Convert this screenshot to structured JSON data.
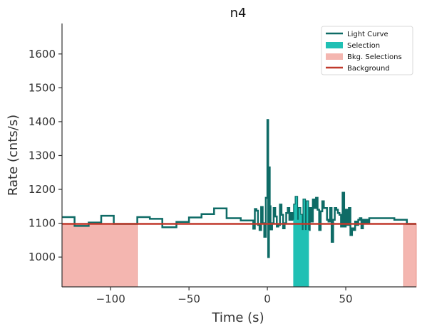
{
  "chart_data": {
    "type": "line",
    "title": "n4",
    "xlabel": "Time (s)",
    "ylabel": "Rate (cnts/s)",
    "xlim": [
      -131,
      95
    ],
    "ylim": [
      912,
      1690
    ],
    "xticks": [
      -100,
      -50,
      0,
      50
    ],
    "xtick_labels": [
      "−100",
      "−50",
      "0",
      "50"
    ],
    "yticks": [
      1000,
      1100,
      1200,
      1300,
      1400,
      1500,
      1600
    ],
    "ytick_labels": [
      "1000",
      "1100",
      "1200",
      "1300",
      "1400",
      "1500",
      "1600"
    ],
    "grid": false,
    "legend_position": "top-right",
    "colors": {
      "light_curve": "#0e6b66",
      "selection": "#20c0b4",
      "bkg_selection": "#f4b6b0",
      "bkg_selection_edge": "#e8958c",
      "background": "#c0392b"
    },
    "legend": [
      {
        "label": "Light Curve",
        "kind": "line",
        "color": "#0e6b66"
      },
      {
        "label": "Selection",
        "kind": "patch",
        "color": "#20c0b4"
      },
      {
        "label": "Bkg. Selections",
        "kind": "patch",
        "color": "#f4b6b0"
      },
      {
        "label": "Background",
        "kind": "line",
        "color": "#c0392b"
      }
    ],
    "light_curve": {
      "x": [
        -131,
        -123,
        -114,
        -106,
        -98,
        -83,
        -75,
        -67,
        -58,
        -50,
        -42,
        -34,
        -33,
        -26,
        -17,
        -9,
        -8,
        -7,
        -6,
        -5,
        -4,
        -3,
        -2,
        -1,
        0,
        0.5,
        1,
        1.5,
        2,
        3,
        4,
        5,
        6,
        7,
        8,
        9,
        10,
        11,
        12,
        13,
        14,
        15,
        16,
        17,
        18,
        19,
        20,
        21,
        22,
        23,
        24,
        25,
        26,
        27,
        28,
        29,
        30,
        31,
        32,
        33,
        34,
        35,
        36,
        37,
        38,
        39,
        40,
        41,
        42,
        43,
        44,
        45,
        46,
        47,
        48,
        49,
        50,
        51,
        52,
        53,
        54,
        55,
        56,
        57,
        58,
        59,
        60,
        61,
        62,
        63,
        64,
        65,
        73,
        81,
        89,
        95
      ],
      "y": [
        1118,
        1092,
        1102,
        1122,
        1098,
        1118,
        1113,
        1088,
        1104,
        1117,
        1127,
        1144,
        1144,
        1115,
        1108,
        1084,
        1142,
        1137,
        1095,
        1080,
        1148,
        1100,
        1060,
        1175,
        1405,
        1000,
        1265,
        1150,
        1082,
        1100,
        1145,
        1120,
        1090,
        1095,
        1155,
        1125,
        1085,
        1100,
        1130,
        1145,
        1110,
        1130,
        1110,
        1155,
        1178,
        1110,
        1145,
        1125,
        1080,
        1170,
        1080,
        1165,
        1080,
        1145,
        1105,
        1170,
        1145,
        1175,
        1140,
        1080,
        1135,
        1165,
        1145,
        1145,
        1110,
        1105,
        1145,
        1045,
        1110,
        1145,
        1140,
        1130,
        1125,
        1090,
        1190,
        1090,
        1140,
        1095,
        1145,
        1065,
        1085,
        1080,
        1105,
        1095,
        1110,
        1115,
        1085,
        1110,
        1100,
        1110,
        1100,
        1115,
        1115,
        1110,
        1098,
        1098
      ]
    },
    "selection": {
      "x_start": 16.5,
      "x_end": 26.5
    },
    "bkg_selections": [
      {
        "x_start": -131,
        "x_end": -83,
        "level": 1098
      },
      {
        "x_start": 87,
        "x_end": 95,
        "level": 1098
      }
    ],
    "background": {
      "x_start": -131,
      "x_end": 95,
      "y": 1098
    }
  }
}
